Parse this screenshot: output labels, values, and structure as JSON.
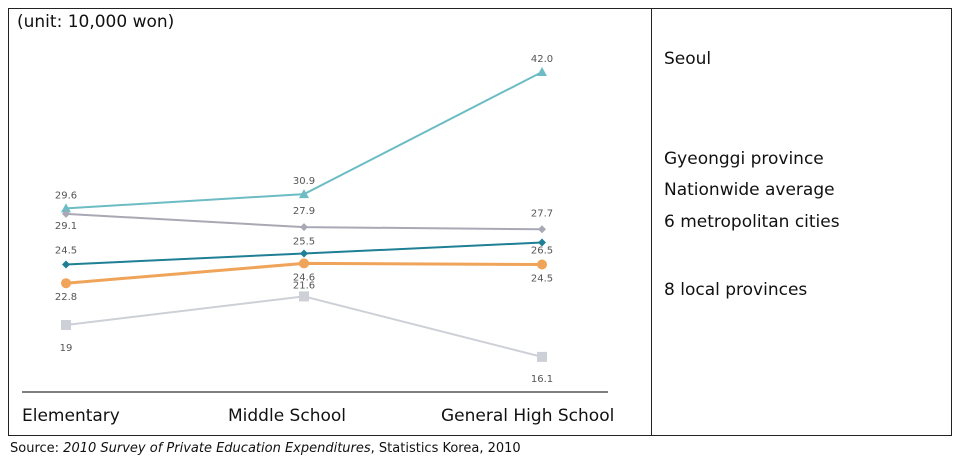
{
  "chart_data": {
    "type": "line",
    "unit_label": "(unit: 10,000 won)",
    "categories": [
      "Elementary",
      "Middle School",
      "General High School"
    ],
    "ylim": [
      14,
      44
    ],
    "grid": false,
    "legend_placement": "right",
    "series": [
      {
        "name": "Seoul",
        "color": "#6cbcc4",
        "marker": "triangle",
        "values": [
          29.6,
          30.9,
          42.0
        ],
        "labels": [
          "29.6",
          "30.9",
          "42.0"
        ]
      },
      {
        "name": "Gyeonggi province",
        "color": "#a9a9b5",
        "marker": "diamond",
        "values": [
          29.1,
          27.9,
          27.7
        ],
        "labels": [
          "29.1",
          "27.9",
          "27.7"
        ]
      },
      {
        "name": "Nationwide average",
        "color": "#1f7f94",
        "marker": "diamond",
        "values": [
          24.5,
          25.5,
          26.5
        ],
        "labels": [
          "24.5",
          "25.5",
          "26.5"
        ]
      },
      {
        "name": "6 metropolitan cities",
        "color": "#efa45a",
        "marker": "circle",
        "values": [
          22.8,
          24.6,
          24.5
        ],
        "labels": [
          "22.8",
          "24.6",
          "24.5"
        ]
      },
      {
        "name": "8 local provinces",
        "color": "#cdd0d6",
        "marker": "square",
        "values": [
          19,
          21.6,
          16.1
        ],
        "labels": [
          "19",
          "21.6",
          "16.1"
        ]
      }
    ]
  },
  "legend": {
    "seoul": "Seoul",
    "gyeonggi": "Gyeonggi province",
    "nationwide": "Nationwide average",
    "metro": "6 metropolitan cities",
    "local": "8 local provinces"
  },
  "source": {
    "prefix": "Source: ",
    "title": "2010 Survey of Private Education Expenditures",
    "suffix": ", Statistics Korea, 2010"
  }
}
